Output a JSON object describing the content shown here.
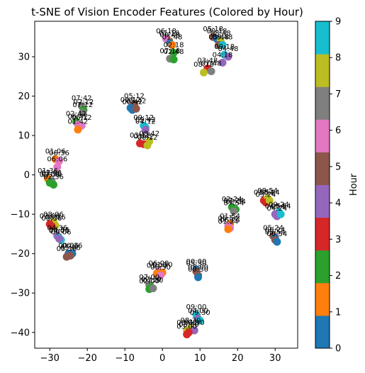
{
  "chart_data": {
    "type": "scatter",
    "title": "t-SNE of Vision Encoder Features (Colored by Hour)",
    "xlabel": "",
    "ylabel": "",
    "xlim": [
      -34,
      36
    ],
    "ylim": [
      -44,
      39
    ],
    "xticks": [
      -30,
      -20,
      -10,
      0,
      10,
      20,
      30
    ],
    "yticks": [
      -40,
      -30,
      -20,
      -10,
      0,
      10,
      20,
      30
    ],
    "grid": false,
    "colorbar": {
      "label": "Hour",
      "range": [
        0,
        9
      ],
      "ticks": [
        0,
        1,
        2,
        3,
        4,
        5,
        6,
        7,
        8,
        9
      ],
      "colors": [
        "#1f77b4",
        "#ff7f0e",
        "#2ca02c",
        "#d62728",
        "#9467bd",
        "#8c564b",
        "#e377c2",
        "#7f7f7f",
        "#bcbd22",
        "#17becf"
      ]
    },
    "points": [
      {
        "label": "01:18",
        "x": 1.8,
        "y": 34.0,
        "hour": 1
      },
      {
        "label": "06:18",
        "x": 1.0,
        "y": 34.5,
        "hour": 6
      },
      {
        "label": "00:48",
        "x": 2.0,
        "y": 33.5,
        "hour": 0
      },
      {
        "label": "01:48",
        "x": 2.6,
        "y": 33.0,
        "hour": 1
      },
      {
        "label": "02:18",
        "x": 3.0,
        "y": 31.0,
        "hour": 2
      },
      {
        "label": "07:18",
        "x": 2.0,
        "y": 29.5,
        "hour": 7
      },
      {
        "label": "02:48",
        "x": 3.0,
        "y": 29.3,
        "hour": 2
      },
      {
        "label": "05:18",
        "x": 13.5,
        "y": 35.0,
        "hour": 5
      },
      {
        "label": "00:18",
        "x": 14.5,
        "y": 34.5,
        "hour": 0
      },
      {
        "label": "08:48",
        "x": 15.5,
        "y": 34.0,
        "hour": 8
      },
      {
        "label": "05:48",
        "x": 15.0,
        "y": 33.0,
        "hour": 5
      },
      {
        "label": "09:48",
        "x": 16.0,
        "y": 33.0,
        "hour": 9
      },
      {
        "label": "09:18",
        "x": 16.5,
        "y": 30.5,
        "hour": 9
      },
      {
        "label": "04:48",
        "x": 17.5,
        "y": 30.0,
        "hour": 4
      },
      {
        "label": "04:18",
        "x": 16.0,
        "y": 28.5,
        "hour": 4
      },
      {
        "label": "03:48",
        "x": 12.0,
        "y": 27.0,
        "hour": 3
      },
      {
        "label": "08:18",
        "x": 11.0,
        "y": 26.0,
        "hour": 8
      },
      {
        "label": "07:48",
        "x": 13.0,
        "y": 26.3,
        "hour": 7
      },
      {
        "label": "07:42",
        "x": -21.5,
        "y": 17.5,
        "hour": 7
      },
      {
        "label": "02:12",
        "x": -21.0,
        "y": 16.5,
        "hour": 2
      },
      {
        "label": "07:12",
        "x": -21.2,
        "y": 15.8,
        "hour": 7
      },
      {
        "label": "02:42",
        "x": -23.0,
        "y": 13.5,
        "hour": 2
      },
      {
        "label": "06:42",
        "x": -22.5,
        "y": 12.8,
        "hour": 6
      },
      {
        "label": "06:12",
        "x": -21.5,
        "y": 12.5,
        "hour": 6
      },
      {
        "label": "01:42",
        "x": -22.5,
        "y": 11.5,
        "hour": 1
      },
      {
        "label": "05:12",
        "x": -7.5,
        "y": 18.0,
        "hour": 5
      },
      {
        "label": "00:12",
        "x": -8.5,
        "y": 17.0,
        "hour": 0
      },
      {
        "label": "00:42",
        "x": -8.0,
        "y": 16.5,
        "hour": 0
      },
      {
        "label": "05:42",
        "x": -7.0,
        "y": 16.8,
        "hour": 5
      },
      {
        "label": "09:12",
        "x": -5.0,
        "y": 12.5,
        "hour": 9
      },
      {
        "label": "09:42",
        "x": -4.5,
        "y": 12.0,
        "hour": 9
      },
      {
        "label": "04:12",
        "x": -4.5,
        "y": 11.5,
        "hour": 4
      },
      {
        "label": "03:12",
        "x": -6.0,
        "y": 8.0,
        "hour": 3
      },
      {
        "label": "08:42",
        "x": -3.5,
        "y": 8.5,
        "hour": 8
      },
      {
        "label": "03:42",
        "x": -5.0,
        "y": 7.8,
        "hour": 3
      },
      {
        "label": "08:12",
        "x": -4.0,
        "y": 7.5,
        "hour": 8
      },
      {
        "label": "01:06",
        "x": -28.5,
        "y": 4.0,
        "hour": 1
      },
      {
        "label": "06:36",
        "x": -27.5,
        "y": 3.5,
        "hour": 6
      },
      {
        "label": "06:06",
        "x": -28.0,
        "y": 2.0,
        "hour": 6
      },
      {
        "label": "01:36",
        "x": -30.5,
        "y": -1.0,
        "hour": 1
      },
      {
        "label": "07:06",
        "x": -29.5,
        "y": -1.5,
        "hour": 7
      },
      {
        "label": "07:36",
        "x": -29.5,
        "y": -1.8,
        "hour": 7
      },
      {
        "label": "02:36",
        "x": -29.0,
        "y": -2.5,
        "hour": 2
      },
      {
        "label": "02:06",
        "x": -30.0,
        "y": -2.0,
        "hour": 2
      },
      {
        "label": "08:06",
        "x": -29.0,
        "y": -12.0,
        "hour": 8
      },
      {
        "label": "03:06",
        "x": -30.0,
        "y": -12.5,
        "hour": 3
      },
      {
        "label": "08:36",
        "x": -28.5,
        "y": -12.8,
        "hour": 8
      },
      {
        "label": "03:36",
        "x": -29.5,
        "y": -13.0,
        "hour": 3
      },
      {
        "label": "04:36",
        "x": -28.0,
        "y": -15.5,
        "hour": 4
      },
      {
        "label": "09:36",
        "x": -27.5,
        "y": -16.0,
        "hour": 9
      },
      {
        "label": "09:06",
        "x": -27.0,
        "y": -16.5,
        "hour": 9
      },
      {
        "label": "04:06",
        "x": -27.5,
        "y": -16.2,
        "hour": 4
      },
      {
        "label": "00:06",
        "x": -25.0,
        "y": -20.0,
        "hour": 0
      },
      {
        "label": "00:36",
        "x": -24.0,
        "y": -20.0,
        "hour": 0
      },
      {
        "label": "05:06",
        "x": -24.5,
        "y": -20.5,
        "hour": 5
      },
      {
        "label": "05:36",
        "x": -25.5,
        "y": -20.8,
        "hour": 5
      },
      {
        "label": "07:24",
        "x": 19.0,
        "y": -8.5,
        "hour": 7
      },
      {
        "label": "02:24",
        "x": 18.5,
        "y": -8.2,
        "hour": 2
      },
      {
        "label": "02:54",
        "x": 19.5,
        "y": -8.8,
        "hour": 2
      },
      {
        "label": "07:54",
        "x": 19.0,
        "y": -9.2,
        "hour": 7
      },
      {
        "label": "01:54",
        "x": 18.0,
        "y": -12.5,
        "hour": 1
      },
      {
        "label": "06:54",
        "x": 17.5,
        "y": -13.0,
        "hour": 6
      },
      {
        "label": "06:24",
        "x": 18.0,
        "y": -13.5,
        "hour": 6
      },
      {
        "label": "01:24",
        "x": 17.5,
        "y": -13.8,
        "hour": 1
      },
      {
        "label": "03:54",
        "x": 27.0,
        "y": -6.5,
        "hour": 3
      },
      {
        "label": "08:54",
        "x": 28.0,
        "y": -6.0,
        "hour": 8
      },
      {
        "label": "03:24",
        "x": 27.5,
        "y": -7.0,
        "hour": 3
      },
      {
        "label": "08:24",
        "x": 28.5,
        "y": -6.5,
        "hour": 8
      },
      {
        "label": "09:24",
        "x": 31.0,
        "y": -9.5,
        "hour": 9
      },
      {
        "label": "04:54",
        "x": 30.0,
        "y": -10.0,
        "hour": 4
      },
      {
        "label": "04:24",
        "x": 30.5,
        "y": -10.5,
        "hour": 4
      },
      {
        "label": "09:54",
        "x": 31.5,
        "y": -10.0,
        "hour": 9
      },
      {
        "label": "05:24",
        "x": 29.5,
        "y": -15.5,
        "hour": 5
      },
      {
        "label": "00:24",
        "x": 30.0,
        "y": -16.0,
        "hour": 0
      },
      {
        "label": "05:54",
        "x": 30.0,
        "y": -16.5,
        "hour": 5
      },
      {
        "label": "00:54",
        "x": 30.5,
        "y": -17.0,
        "hour": 0
      },
      {
        "label": "06:00",
        "x": -1.0,
        "y": -24.5,
        "hour": 6
      },
      {
        "label": "01:00",
        "x": -1.5,
        "y": -25.0,
        "hour": 1
      },
      {
        "label": "01:30",
        "x": 0.0,
        "y": -24.8,
        "hour": 1
      },
      {
        "label": "06:30",
        "x": -0.5,
        "y": -25.5,
        "hour": 6
      },
      {
        "label": "00:00",
        "x": 9.0,
        "y": -24.0,
        "hour": 0
      },
      {
        "label": "05:30",
        "x": 9.0,
        "y": -24.5,
        "hour": 5
      },
      {
        "label": "05:00",
        "x": 9.5,
        "y": -25.5,
        "hour": 5
      },
      {
        "label": "00:30",
        "x": 9.5,
        "y": -26.0,
        "hour": 0
      },
      {
        "label": "07:00",
        "x": -3.5,
        "y": -28.0,
        "hour": 7
      },
      {
        "label": "02:30",
        "x": -3.0,
        "y": -28.5,
        "hour": 2
      },
      {
        "label": "02:00",
        "x": -3.5,
        "y": -29.0,
        "hour": 2
      },
      {
        "label": "07:30",
        "x": -2.5,
        "y": -28.8,
        "hour": 7
      },
      {
        "label": "09:00",
        "x": 9.0,
        "y": -35.5,
        "hour": 9
      },
      {
        "label": "04:00",
        "x": 9.5,
        "y": -36.5,
        "hour": 4
      },
      {
        "label": "09:30",
        "x": 10.0,
        "y": -37.0,
        "hour": 9
      },
      {
        "label": "08:30",
        "x": 7.5,
        "y": -39.0,
        "hour": 8
      },
      {
        "label": "04:30",
        "x": 8.5,
        "y": -39.5,
        "hour": 4
      },
      {
        "label": "08:00",
        "x": 6.5,
        "y": -39.5,
        "hour": 8
      },
      {
        "label": "03:30",
        "x": 7.0,
        "y": -40.0,
        "hour": 3
      },
      {
        "label": "03:00",
        "x": 6.5,
        "y": -40.5,
        "hour": 3
      }
    ]
  }
}
